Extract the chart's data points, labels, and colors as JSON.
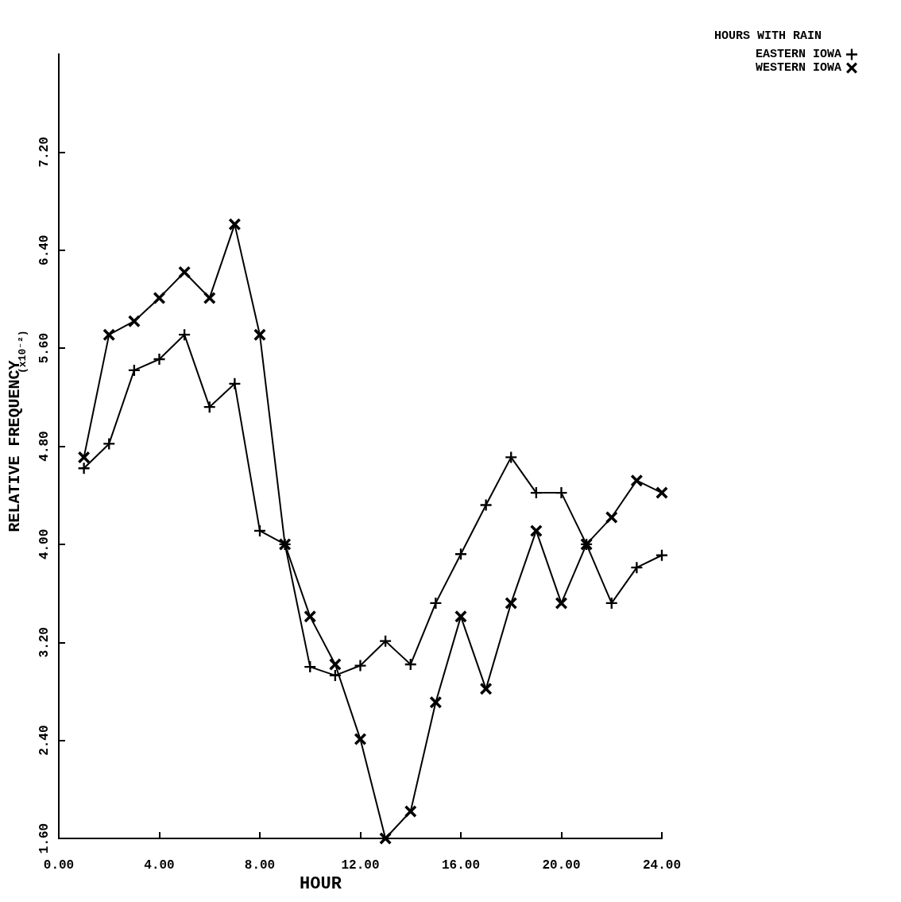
{
  "chart_data": {
    "type": "line",
    "xlabel": "HOUR",
    "ylabel": "RELATIVE FREQUENCY",
    "legend_title": "HOURS WITH RAIN",
    "annotations": [
      "(x10⁻²)"
    ],
    "x": [
      1,
      2,
      3,
      4,
      5,
      6,
      7,
      8,
      9,
      10,
      11,
      12,
      13,
      14,
      15,
      16,
      17,
      18,
      19,
      20,
      21,
      22,
      23,
      24
    ],
    "series": [
      {
        "name": "EASTERN IOWA",
        "color": "#000000",
        "marker": "cross",
        "values": [
          4.62,
          4.82,
          5.42,
          5.51,
          5.71,
          5.12,
          5.31,
          4.11,
          4.0,
          3.0,
          2.93,
          3.01,
          3.21,
          3.02,
          3.52,
          3.92,
          4.32,
          4.71,
          4.42,
          4.42,
          4.0,
          3.52,
          3.81,
          3.91
        ]
      },
      {
        "name": "WESTERN IOWA",
        "color": "#000000",
        "marker": "x",
        "values": [
          4.71,
          5.71,
          5.82,
          6.01,
          6.22,
          6.01,
          6.61,
          5.71,
          4.0,
          3.41,
          3.02,
          2.41,
          1.6,
          1.82,
          2.71,
          3.41,
          2.82,
          3.52,
          4.11,
          3.52,
          4.0,
          4.22,
          4.52,
          4.42
        ]
      }
    ],
    "xlim": [
      0,
      24
    ],
    "xticks": [
      {
        "value": 0,
        "label": "0.00"
      },
      {
        "value": 4,
        "label": "4.00"
      },
      {
        "value": 8,
        "label": "8.00"
      },
      {
        "value": 12,
        "label": "12.00"
      },
      {
        "value": 16,
        "label": "16.00"
      },
      {
        "value": 20,
        "label": "20.00"
      },
      {
        "value": 24,
        "label": "24.00"
      }
    ],
    "ylim": [
      1.6,
      8.0
    ],
    "yticks": [
      {
        "value": 1.6,
        "label": "1.60"
      },
      {
        "value": 2.4,
        "label": "2.40"
      },
      {
        "value": 3.2,
        "label": "3.20"
      },
      {
        "value": 4.0,
        "label": "4.00"
      },
      {
        "value": 4.8,
        "label": "4.80"
      },
      {
        "value": 5.6,
        "label": "5.60"
      },
      {
        "value": 6.4,
        "label": "6.40"
      },
      {
        "value": 7.2,
        "label": "7.20"
      }
    ],
    "grid": false,
    "legend": "top right",
    "line_style": "solid"
  }
}
